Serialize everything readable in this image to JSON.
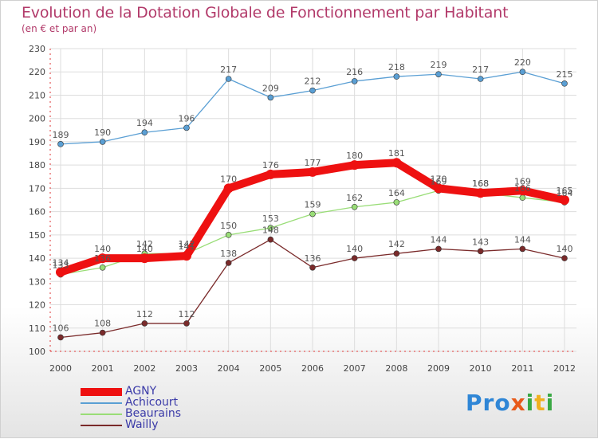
{
  "title": "Evolution de la Dotation Globale de Fonctionnement par Habitant",
  "subtitle": "(en € et par an)",
  "logo": {
    "text": "Proxiti",
    "colors": [
      "#2f86d6",
      "#3aa844",
      "#e85a1a",
      "#f0b020"
    ]
  },
  "chart_data": {
    "type": "line",
    "title": "Evolution de la Dotation Globale de Fonctionnement par Habitant",
    "subtitle": "(en € et par an)",
    "xlabel": "",
    "ylabel": "",
    "ylim": [
      100,
      230
    ],
    "yticks": [
      100,
      110,
      120,
      130,
      140,
      150,
      160,
      170,
      180,
      190,
      200,
      210,
      220,
      230
    ],
    "categories": [
      "2000",
      "2001",
      "2002",
      "2003",
      "2004",
      "2005",
      "2006",
      "2007",
      "2008",
      "2009",
      "2010",
      "2011",
      "2012"
    ],
    "grid": true,
    "legend_position": "bottom-left",
    "series": [
      {
        "name": "AGNY",
        "color": "#ee1111",
        "values": [
          134,
          140,
          140,
          141,
          170,
          176,
          177,
          180,
          181,
          170,
          168,
          169,
          165
        ]
      },
      {
        "name": "Achicourt",
        "color": "#5a9fd4",
        "values": [
          189,
          190,
          194,
          196,
          217,
          209,
          212,
          216,
          218,
          219,
          217,
          220,
          215
        ]
      },
      {
        "name": "Beaurains",
        "color": "#99dd77",
        "values": [
          133,
          136,
          142,
          142,
          150,
          153,
          159,
          162,
          164,
          169,
          168,
          166,
          164
        ]
      },
      {
        "name": "Wailly",
        "color": "#7a2a2a",
        "values": [
          106,
          108,
          112,
          112,
          138,
          148,
          136,
          140,
          142,
          144,
          143,
          144,
          140
        ]
      }
    ]
  }
}
